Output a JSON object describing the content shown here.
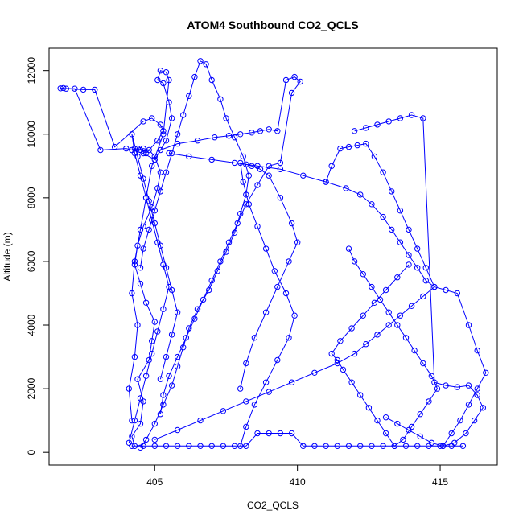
{
  "chart_data": {
    "type": "scatter",
    "title": "ATOM4 Southbound CO2_QCLS",
    "xlabel": "CO2_QCLS",
    "ylabel": "Altitude (m)",
    "xlim": [
      401.3,
      417.0
    ],
    "ylim": [
      -400,
      12700
    ],
    "xticks": [
      405,
      410,
      415
    ],
    "yticks": [
      0,
      2000,
      4000,
      6000,
      8000,
      10000,
      12000
    ],
    "grid": false,
    "legend": "none",
    "mode": "lines+markers",
    "color": "#0000ff",
    "series": [
      {
        "x": [
          404.3,
          404.2,
          404.5,
          404.6,
          404.4,
          404.8,
          404.9,
          405.0,
          404.7,
          404.5,
          404.3,
          404.4,
          404.6,
          404.9,
          405.1,
          405.2,
          405.0,
          404.8,
          404.6,
          404.5,
          404.3,
          404.2,
          404.4,
          404.7,
          405.1,
          405.3,
          405.2,
          404.9,
          404.6,
          403.6,
          402.9,
          402.5,
          401.9,
          401.8,
          401.7,
          402.2,
          403.1,
          404.0,
          404.6,
          405.0,
          405.4,
          405.6,
          405.5,
          405.3,
          405.1,
          405.2,
          405.4,
          405.5,
          405.3,
          404.9,
          404.7,
          404.5,
          404.3,
          404.2,
          404.4,
          404.3,
          404.1,
          404.2
        ],
        "y": [
          200,
          500,
          900,
          1600,
          2300,
          2900,
          3500,
          4100,
          4700,
          5300,
          5900,
          6500,
          7100,
          7700,
          8300,
          8800,
          9300,
          9500,
          9550,
          9500,
          9550,
          9500,
          9550,
          9400,
          9800,
          10100,
          10300,
          10500,
          10400,
          9600,
          11400,
          11400,
          11430,
          11450,
          11440,
          11430,
          9500,
          9550,
          9400,
          9200,
          9800,
          10500,
          11000,
          11600,
          11700,
          12000,
          11950,
          11700,
          10000,
          9000,
          8000,
          7000,
          6000,
          5000,
          4000,
          3000,
          2000,
          1000
        ]
      },
      {
        "x": [
          404.5,
          404.7,
          405.0,
          405.3,
          405.6,
          405.8,
          406.0,
          406.2,
          406.5,
          406.9,
          407.2,
          407.5,
          407.8,
          408.0,
          408.2,
          408.3,
          408.1,
          407.8,
          407.5,
          407.3,
          407.0,
          406.8,
          406.6,
          406.4,
          406.2,
          406.0,
          405.8,
          405.6,
          405.4,
          405.2,
          405.0,
          404.8,
          404.6,
          404.5
        ],
        "y": [
          150,
          400,
          900,
          1500,
          2100,
          2700,
          3300,
          3900,
          4500,
          5100,
          5700,
          6300,
          6900,
          7500,
          8100,
          8700,
          9300,
          9900,
          10500,
          11100,
          11700,
          12200,
          12300,
          11800,
          11200,
          10600,
          10000,
          9400,
          8800,
          8200,
          7600,
          7000,
          6400,
          5800
        ]
      },
      {
        "x": [
          405.2,
          405.8,
          406.5,
          407.1,
          407.6,
          408.0,
          408.4,
          408.7,
          409.0,
          409.3,
          409.6,
          409.9,
          410.1,
          409.8,
          409.4,
          409.0,
          408.6,
          408.2,
          407.9,
          407.6,
          407.3,
          407.0,
          406.7,
          406.4,
          406.1,
          405.8,
          405.5,
          405.3,
          405.2
        ],
        "y": [
          9500,
          9700,
          9800,
          9900,
          9950,
          10000,
          10050,
          10100,
          10150,
          10100,
          11700,
          11800,
          11650,
          11300,
          9100,
          9000,
          8400,
          7800,
          7200,
          6600,
          6000,
          5400,
          4800,
          4200,
          3600,
          3000,
          2400,
          1800,
          1200
        ]
      },
      {
        "x": [
          408.0,
          408.2,
          408.5,
          408.9,
          409.3,
          409.7,
          409.9,
          409.6,
          409.2,
          408.9,
          408.6,
          408.3,
          408.1,
          408.0,
          408.2,
          408.4,
          408.7,
          409.0,
          409.4,
          409.8,
          410.0,
          409.7,
          409.3,
          408.9,
          408.5,
          408.2,
          408.0
        ],
        "y": [
          200,
          800,
          1500,
          2200,
          2900,
          3600,
          4300,
          5000,
          5700,
          6400,
          7100,
          7800,
          8500,
          9100,
          9050,
          9000,
          8900,
          8700,
          8000,
          7200,
          6600,
          6000,
          5200,
          4400,
          3600,
          2800,
          2000
        ]
      },
      {
        "x": [
          405.5,
          406.2,
          407.0,
          407.8,
          408.6,
          409.4,
          410.2,
          411.0,
          411.7,
          412.2,
          412.6,
          413.0,
          413.3,
          413.6,
          413.9,
          414.2,
          414.5,
          414.8,
          415.2,
          415.6,
          416.0,
          416.3,
          416.6,
          416.3,
          416.0,
          415.7,
          415.4,
          415.1
        ],
        "y": [
          9400,
          9300,
          9200,
          9100,
          9000,
          8900,
          8700,
          8500,
          8300,
          8100,
          7800,
          7400,
          7000,
          6600,
          6200,
          5800,
          5400,
          5200,
          5100,
          5000,
          4000,
          3200,
          2500,
          2000,
          1500,
          1000,
          600,
          200
        ]
      },
      {
        "x": [
          405.0,
          405.8,
          406.6,
          407.4,
          408.2,
          409.0,
          409.8,
          410.6,
          411.4,
          412.0,
          412.4,
          412.8,
          413.2,
          413.6,
          414.0,
          414.4,
          414.8,
          414.5,
          414.2,
          413.9,
          413.6,
          413.3,
          413.0,
          412.7,
          412.4,
          412.1,
          411.8,
          411.5,
          411.2,
          411.0
        ],
        "y": [
          400,
          700,
          1000,
          1300,
          1600,
          1900,
          2200,
          2500,
          2800,
          3100,
          3400,
          3700,
          4000,
          4300,
          4600,
          4900,
          5200,
          5800,
          6400,
          7000,
          7600,
          8200,
          8800,
          9300,
          9700,
          9650,
          9600,
          9550,
          9000,
          8500
        ]
      },
      {
        "x": [
          411.8,
          412.0,
          412.3,
          412.6,
          412.9,
          413.2,
          413.5,
          413.8,
          414.1,
          414.4,
          414.7,
          414.9,
          414.6,
          414.3,
          414.0,
          413.7,
          413.4,
          413.1,
          412.8,
          412.5,
          412.2,
          411.9,
          411.6,
          411.4,
          411.2,
          411.5,
          411.9,
          412.3,
          412.7,
          413.1,
          413.5,
          413.9
        ],
        "y": [
          6400,
          6000,
          5600,
          5200,
          4800,
          4400,
          4000,
          3600,
          3200,
          2800,
          2400,
          2000,
          1600,
          1200,
          800,
          400,
          200,
          600,
          1000,
          1400,
          1800,
          2200,
          2600,
          2900,
          3100,
          3500,
          3900,
          4300,
          4700,
          5100,
          5500,
          5900
        ]
      },
      {
        "x": [
          412.0,
          412.4,
          412.8,
          413.2,
          413.6,
          414.0,
          414.4,
          414.8,
          415.2,
          415.6,
          416.0,
          416.3,
          416.5,
          416.2,
          415.9,
          415.5,
          415.1,
          414.7,
          414.3,
          413.9,
          413.5,
          413.1
        ],
        "y": [
          10100,
          10200,
          10300,
          10400,
          10500,
          10600,
          10500,
          2200,
          2100,
          2050,
          2100,
          1800,
          1400,
          1000,
          600,
          300,
          200,
          300,
          500,
          700,
          900,
          1100
        ]
      },
      {
        "x": [
          404.2,
          404.6,
          405.0,
          405.4,
          405.8,
          406.2,
          406.6,
          407.0,
          407.4,
          407.8,
          408.2,
          408.6,
          409.0,
          409.4,
          409.8,
          410.2,
          410.6,
          411.0,
          411.4,
          411.8,
          412.2,
          412.6,
          413.0,
          413.4,
          413.8,
          414.2,
          414.6,
          415.0,
          415.4,
          415.8
        ],
        "y": [
          200,
          200,
          200,
          200,
          200,
          200,
          200,
          200,
          200,
          200,
          200,
          600,
          600,
          600,
          600,
          200,
          200,
          200,
          200,
          200,
          200,
          200,
          200,
          200,
          200,
          200,
          200,
          200,
          200,
          200
        ]
      },
      {
        "x": [
          404.1,
          404.3,
          404.5,
          404.7,
          404.9,
          405.1,
          405.3,
          405.5,
          405.3,
          405.1,
          404.9,
          404.7,
          404.5,
          404.3,
          404.2,
          404.4,
          404.6,
          404.8,
          405.0,
          405.2,
          405.4,
          405.6,
          405.8,
          405.6,
          405.4,
          405.2
        ],
        "y": [
          300,
          1000,
          1700,
          2400,
          3100,
          3800,
          4500,
          5200,
          5900,
          6600,
          7300,
          8000,
          8700,
          9400,
          10000,
          9300,
          8600,
          7900,
          7200,
          6500,
          5800,
          5100,
          4400,
          3700,
          3000,
          2300
        ]
      }
    ]
  }
}
